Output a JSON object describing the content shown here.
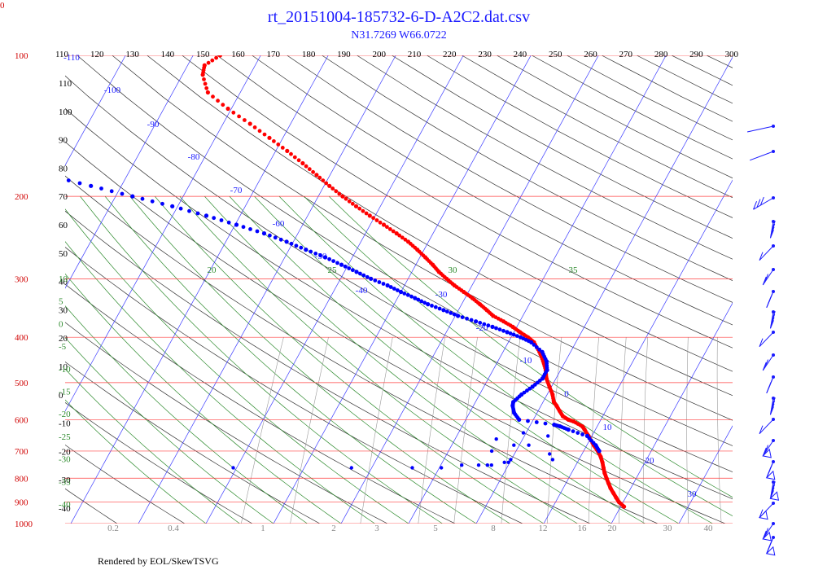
{
  "header": {
    "title": "rt_20151004-185732-6-D-A2C2.dat.csv",
    "subtitle": "N31.7269 W66.0722",
    "footer": "Rendered by EOL/SkewTSVG",
    "corner_mark": "0"
  },
  "chart_data": {
    "type": "scatter",
    "subtype": "skew-T log-P diagram",
    "pressure_axis": {
      "ticks": [
        100,
        200,
        300,
        400,
        500,
        600,
        700,
        800,
        900,
        1000
      ],
      "range": [
        1000,
        100
      ],
      "scale": "log"
    },
    "potential_temperature_ticks": [
      110,
      120,
      130,
      140,
      150,
      160,
      170,
      180,
      190,
      200,
      210,
      220,
      230,
      240,
      250,
      260,
      270,
      280,
      290,
      300
    ],
    "isotherm_labels": [
      "-110",
      "-100",
      "-90",
      "-80",
      "-70",
      "-60",
      "-50",
      "-40",
      "-30",
      "-20",
      "-10",
      "0",
      "10",
      "20",
      "30"
    ],
    "dry_adiabat_labels": [
      "110",
      "100",
      "90",
      "80",
      "70",
      "60",
      "50",
      "40",
      "30",
      "20",
      "10",
      "0",
      "-10",
      "-20",
      "-30",
      "-40"
    ],
    "moist_adiabat_labels": [
      "10",
      "5",
      "0",
      "-5",
      "-10",
      "-15",
      "-20",
      "-25",
      "-30",
      "-35",
      "-40"
    ],
    "mixing_ratio_labels": [
      "0.2",
      "0.4",
      "1",
      "2",
      "3",
      "5",
      "8",
      "12",
      "16",
      "20",
      "30",
      "40"
    ],
    "saturated_adiabat_top_labels": [
      "20",
      "25",
      "30",
      "35"
    ],
    "series": [
      {
        "name": "",
        "color": "#ff0000",
        "points": [
          [
            920,
            20.5
          ],
          [
            900,
            19.4
          ],
          [
            880,
            18.6
          ],
          [
            860,
            17.8
          ],
          [
            840,
            17
          ],
          [
            820,
            16.3
          ],
          [
            800,
            15.6
          ],
          [
            780,
            14.9
          ],
          [
            760,
            14.3
          ],
          [
            740,
            13.7
          ],
          [
            720,
            13
          ],
          [
            700,
            12.1
          ],
          [
            680,
            11
          ],
          [
            650,
            9.5
          ],
          [
            630,
            8.4
          ],
          [
            620,
            7.8
          ],
          [
            605,
            6.1
          ],
          [
            600,
            5.2
          ],
          [
            590,
            4.1
          ],
          [
            575,
            3.2
          ],
          [
            560,
            2.3
          ],
          [
            550,
            1.6
          ],
          [
            530,
            0.8
          ],
          [
            510,
            -0.3
          ],
          [
            490,
            -1.4
          ],
          [
            470,
            -2.2
          ],
          [
            450,
            -3.3
          ],
          [
            430,
            -4.6
          ],
          [
            410,
            -6.2
          ],
          [
            400,
            -7.5
          ],
          [
            390,
            -9.1
          ],
          [
            380,
            -10.6
          ],
          [
            370,
            -12.4
          ],
          [
            360,
            -14.4
          ],
          [
            350,
            -15.8
          ],
          [
            340,
            -17.3
          ],
          [
            330,
            -18.9
          ],
          [
            320,
            -20.7
          ],
          [
            310,
            -22.6
          ],
          [
            300,
            -24.3
          ],
          [
            290,
            -26
          ],
          [
            280,
            -27.5
          ],
          [
            270,
            -29.2
          ],
          [
            260,
            -31
          ],
          [
            250,
            -33
          ],
          [
            240,
            -35.4
          ],
          [
            230,
            -38
          ],
          [
            220,
            -40.8
          ],
          [
            210,
            -43.6
          ],
          [
            200,
            -46.4
          ],
          [
            190,
            -49.2
          ],
          [
            180,
            -52
          ],
          [
            170,
            -55
          ],
          [
            160,
            -58.3
          ],
          [
            150,
            -62
          ],
          [
            140,
            -66
          ],
          [
            130,
            -70.5
          ],
          [
            120,
            -74.8
          ],
          [
            110,
            -77
          ],
          [
            105,
            -77.5
          ],
          [
            100,
            -76
          ],
          [
            95,
            -73.5
          ],
          [
            90,
            -71.5
          ],
          [
            85,
            -69.5
          ],
          [
            80,
            -67.5
          ],
          [
            76,
            -65.8
          ],
          [
            73,
            -63.8
          ]
        ]
      },
      {
        "name": "",
        "color": "#0000ff",
        "points": [
          [
            700,
            12.3
          ],
          [
            680,
            11.3
          ],
          [
            650,
            9.3
          ],
          [
            630,
            6
          ],
          [
            620,
            4.5
          ],
          [
            615,
            3.5
          ],
          [
            600,
            -2.1
          ],
          [
            580,
            -3.4
          ],
          [
            560,
            -4.2
          ],
          [
            550,
            -4.4
          ],
          [
            530,
            -3.8
          ],
          [
            510,
            -2.8
          ],
          [
            490,
            -2
          ],
          [
            470,
            -2
          ],
          [
            450,
            -2.8
          ],
          [
            430,
            -4.2
          ],
          [
            410,
            -6.6
          ],
          [
            400,
            -8.6
          ],
          [
            390,
            -11
          ],
          [
            380,
            -13.6
          ],
          [
            370,
            -16.5
          ],
          [
            360,
            -19.6
          ],
          [
            350,
            -22.2
          ],
          [
            340,
            -25
          ],
          [
            330,
            -27.4
          ],
          [
            320,
            -30
          ],
          [
            310,
            -32.5
          ],
          [
            300,
            -35.5
          ],
          [
            290,
            -38.2
          ],
          [
            280,
            -41
          ],
          [
            270,
            -44
          ],
          [
            260,
            -47.5
          ],
          [
            250,
            -51
          ],
          [
            240,
            -55
          ],
          [
            230,
            -59.8
          ],
          [
            220,
            -65
          ],
          [
            210,
            -70.8
          ],
          [
            200,
            -77.5
          ],
          [
            190,
            -84.5
          ],
          [
            180,
            -92
          ],
          [
            170,
            -100.2
          ]
        ]
      }
    ],
    "scattered_blue_points": [
      [
        760,
        -40.5
      ],
      [
        760,
        -23
      ],
      [
        760,
        -14
      ],
      [
        760,
        -9.7
      ],
      [
        750,
        -6.9
      ],
      [
        750,
        -4.4
      ],
      [
        750,
        -3.1
      ],
      [
        750,
        -2.5
      ],
      [
        740,
        -0.8
      ],
      [
        740,
        -0.2
      ],
      [
        730,
        -0.1
      ],
      [
        730,
        6.1
      ],
      [
        710,
        5.2
      ],
      [
        700,
        -3.6
      ],
      [
        680,
        -0.8
      ],
      [
        680,
        1.4
      ],
      [
        660,
        -3.9
      ],
      [
        650,
        3.5
      ],
      [
        640,
        -0.4
      ]
    ],
    "wind_barbs_note": "wind barbs shown at right"
  }
}
